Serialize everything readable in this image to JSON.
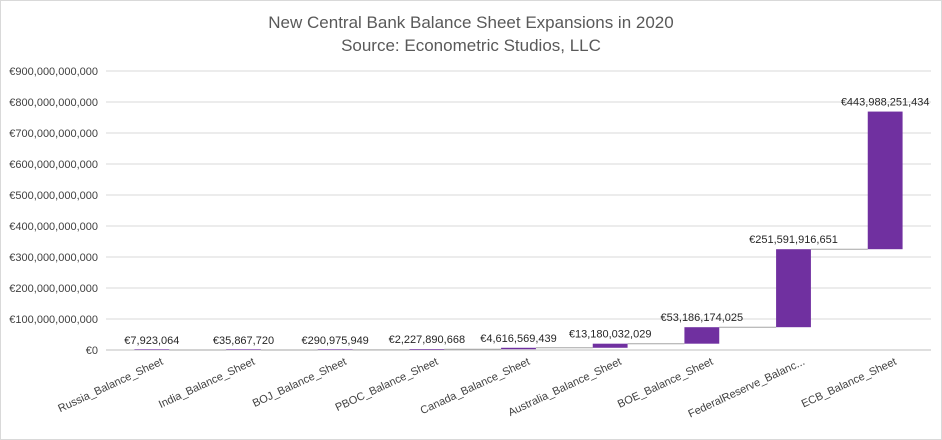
{
  "chart_data": {
    "type": "bar",
    "subtype": "waterfall",
    "title": "New Central Bank Balance Sheet Expansions in 2020",
    "subtitle": "Source: Econometric Studios, LLC",
    "xlabel": "",
    "ylabel": "",
    "ylim": [
      0,
      900000000000
    ],
    "yticks": [
      0,
      100000000000,
      200000000000,
      300000000000,
      400000000000,
      500000000000,
      600000000000,
      700000000000,
      800000000000,
      900000000000
    ],
    "ytick_labels": [
      "€0",
      "€100,000,000,000",
      "€200,000,000,000",
      "€300,000,000,000",
      "€400,000,000,000",
      "€500,000,000,000",
      "€600,000,000,000",
      "€700,000,000,000",
      "€800,000,000,000",
      "€900,000,000,000"
    ],
    "grid": true,
    "legend": "none",
    "bar_color": "#7030a0",
    "categories": [
      "Russia_Balance_Sheet",
      "India_Balance_Sheet",
      "BOJ_Balance_Sheet",
      "PBOC_Balance_Sheet",
      "Canada_Balance_Sheet",
      "Australia_Balance_Sheet",
      "BOE_Balance_Sheet",
      "FederalReserve_Balanc...",
      "ECB_Balance_Sheet"
    ],
    "values": [
      7923064,
      35867720,
      290975949,
      2227890668,
      4616569439,
      13180032029,
      53186174025,
      251591916651,
      443988251434
    ],
    "value_labels": [
      "€7,923,064",
      "€35,867,720",
      "€290,975,949",
      "€2,227,890,668",
      "€4,616,569,439",
      "€13,180,032,029",
      "€53,186,174,025",
      "€251,591,916,651",
      "€443,988,251,434"
    ]
  }
}
